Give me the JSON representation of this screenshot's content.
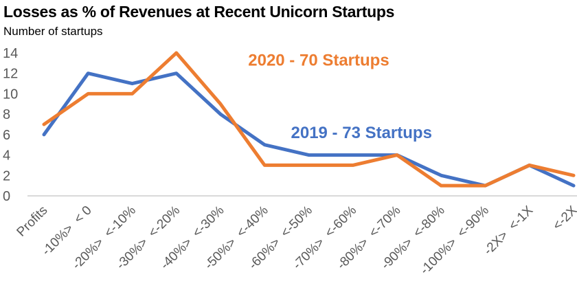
{
  "chart_data": {
    "type": "line",
    "title": "Losses as % of Revenues at Recent Unicorn Startups",
    "subtitle": "Number of startups",
    "xlabel": "",
    "ylabel": "Number of startups",
    "ylim": [
      0,
      14
    ],
    "yticks": [
      0,
      2,
      4,
      6,
      8,
      10,
      12,
      14
    ],
    "grid": false,
    "legend": "none",
    "categories": [
      "Profits",
      "-10%>  < 0",
      "-20%>  <-10%",
      "-30%>  <-20%",
      "-40%>  <-30%",
      "-50%>  <-40%",
      "-60%>  <-50%",
      "-70%>  <-60%",
      "-80%>  <-70%",
      "-90%>  <-80%",
      "-100%>  <-90%",
      "-2X>  <-1X",
      "<-2X"
    ],
    "series": [
      {
        "name": "2019",
        "label": "2019 - 73 Startups",
        "color": "#4472C4",
        "values": [
          6,
          12,
          11,
          12,
          8,
          5,
          4,
          4,
          4,
          2,
          1,
          3,
          1
        ]
      },
      {
        "name": "2020",
        "label": "2020 - 70 Startups",
        "color": "#ED7D31",
        "values": [
          7,
          10,
          10,
          14,
          9,
          3,
          3,
          3,
          4,
          1,
          1,
          3,
          2
        ]
      }
    ],
    "annotations": [
      {
        "text": "2020 - 70 Startups",
        "series": "2020",
        "color": "#ED7D31",
        "near_category": "-50%>  <-40%",
        "at_value": 13.3
      },
      {
        "text": "2019 - 73 Startups",
        "series": "2019",
        "color": "#4472C4",
        "near_category": "-60%>  <-50%",
        "at_value": 6.2
      }
    ],
    "axis_color": "#D9D9D9",
    "tick_label_color": "#595959"
  }
}
